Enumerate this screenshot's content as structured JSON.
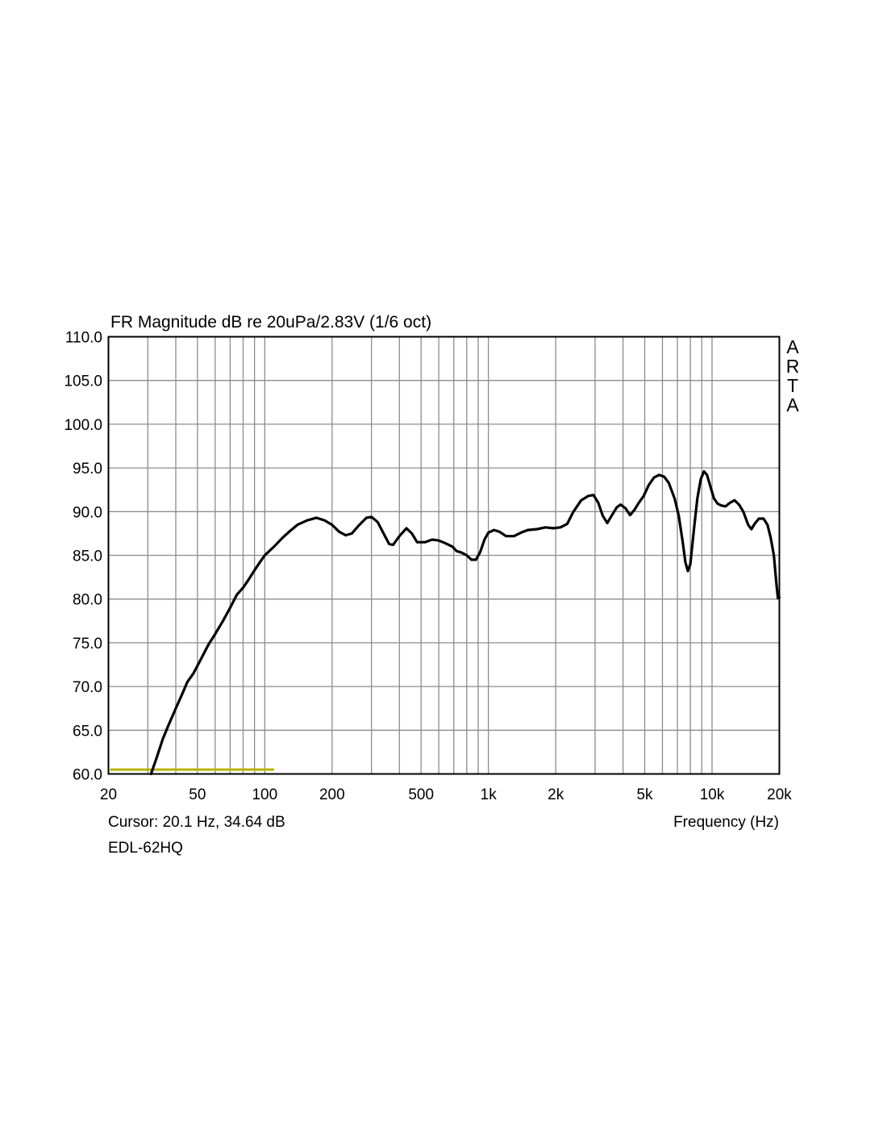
{
  "chart_data": {
    "type": "line",
    "title": "FR Magnitude dB re 20uPa/2.83V (1/6 oct)",
    "xlabel": "Frequency (Hz)",
    "ylabel": "",
    "xscale": "log",
    "xlim": [
      20,
      20000
    ],
    "ylim": [
      60,
      110
    ],
    "grid": true,
    "yticks": [
      "110.0",
      "105.0",
      "100.0",
      "95.0",
      "90.0",
      "85.0",
      "80.0",
      "75.0",
      "70.0",
      "65.0",
      "60.0"
    ],
    "xticks": [
      {
        "value": 20,
        "label": "20"
      },
      {
        "value": 50,
        "label": "50"
      },
      {
        "value": 100,
        "label": "100"
      },
      {
        "value": 200,
        "label": "200"
      },
      {
        "value": 500,
        "label": "500"
      },
      {
        "value": 1000,
        "label": "1k"
      },
      {
        "value": 2000,
        "label": "2k"
      },
      {
        "value": 5000,
        "label": "5k"
      },
      {
        "value": 10000,
        "label": "10k"
      },
      {
        "value": 20000,
        "label": "20k"
      }
    ],
    "cursor_text": "Cursor: 20.1 Hz, 34.64 dB",
    "measurement_name": "EDL-62HQ",
    "watermark_letters": [
      "A",
      "R",
      "T",
      "A"
    ],
    "cursor_line": {
      "color": "#b8b400",
      "x_start": 20,
      "x_end": 110,
      "y": 60.5
    },
    "series": [
      {
        "color": "#000000",
        "points": [
          [
            31,
            60.0
          ],
          [
            33,
            62.0
          ],
          [
            35,
            64.0
          ],
          [
            37,
            65.5
          ],
          [
            40,
            67.5
          ],
          [
            43,
            69.3
          ],
          [
            45,
            70.5
          ],
          [
            48,
            71.5
          ],
          [
            52,
            73.2
          ],
          [
            56,
            74.8
          ],
          [
            60,
            76.0
          ],
          [
            65,
            77.5
          ],
          [
            70,
            79.0
          ],
          [
            75,
            80.5
          ],
          [
            80,
            81.3
          ],
          [
            85,
            82.3
          ],
          [
            90,
            83.3
          ],
          [
            95,
            84.2
          ],
          [
            100,
            85.0
          ],
          [
            110,
            86.0
          ],
          [
            120,
            87.0
          ],
          [
            130,
            87.8
          ],
          [
            140,
            88.5
          ],
          [
            155,
            89.0
          ],
          [
            170,
            89.3
          ],
          [
            185,
            89.0
          ],
          [
            200,
            88.5
          ],
          [
            215,
            87.7
          ],
          [
            230,
            87.3
          ],
          [
            245,
            87.5
          ],
          [
            265,
            88.5
          ],
          [
            285,
            89.3
          ],
          [
            300,
            89.4
          ],
          [
            320,
            88.8
          ],
          [
            340,
            87.5
          ],
          [
            360,
            86.3
          ],
          [
            375,
            86.2
          ],
          [
            400,
            87.2
          ],
          [
            430,
            88.1
          ],
          [
            455,
            87.5
          ],
          [
            480,
            86.5
          ],
          [
            520,
            86.5
          ],
          [
            560,
            86.8
          ],
          [
            600,
            86.7
          ],
          [
            640,
            86.4
          ],
          [
            690,
            86.0
          ],
          [
            720,
            85.5
          ],
          [
            760,
            85.3
          ],
          [
            800,
            85.0
          ],
          [
            840,
            84.5
          ],
          [
            880,
            84.5
          ],
          [
            920,
            85.4
          ],
          [
            960,
            86.8
          ],
          [
            1000,
            87.6
          ],
          [
            1060,
            87.9
          ],
          [
            1120,
            87.7
          ],
          [
            1200,
            87.2
          ],
          [
            1300,
            87.2
          ],
          [
            1400,
            87.6
          ],
          [
            1500,
            87.9
          ],
          [
            1650,
            88.0
          ],
          [
            1800,
            88.2
          ],
          [
            1950,
            88.1
          ],
          [
            2100,
            88.2
          ],
          [
            2250,
            88.6
          ],
          [
            2400,
            90.0
          ],
          [
            2600,
            91.3
          ],
          [
            2800,
            91.8
          ],
          [
            2950,
            91.9
          ],
          [
            3100,
            91.0
          ],
          [
            3250,
            89.5
          ],
          [
            3400,
            88.7
          ],
          [
            3550,
            89.5
          ],
          [
            3750,
            90.5
          ],
          [
            3900,
            90.8
          ],
          [
            4100,
            90.4
          ],
          [
            4300,
            89.6
          ],
          [
            4500,
            90.2
          ],
          [
            4700,
            91.0
          ],
          [
            4950,
            91.8
          ],
          [
            5200,
            93.0
          ],
          [
            5500,
            93.9
          ],
          [
            5800,
            94.2
          ],
          [
            6100,
            94.0
          ],
          [
            6400,
            93.3
          ],
          [
            6800,
            91.5
          ],
          [
            7100,
            89.5
          ],
          [
            7400,
            86.5
          ],
          [
            7600,
            84.2
          ],
          [
            7800,
            83.2
          ],
          [
            8000,
            84.0
          ],
          [
            8300,
            88.0
          ],
          [
            8600,
            91.5
          ],
          [
            8900,
            93.7
          ],
          [
            9200,
            94.6
          ],
          [
            9500,
            94.2
          ],
          [
            9800,
            93.0
          ],
          [
            10200,
            91.5
          ],
          [
            10600,
            90.9
          ],
          [
            11000,
            90.7
          ],
          [
            11500,
            90.6
          ],
          [
            12000,
            91.0
          ],
          [
            12600,
            91.3
          ],
          [
            13200,
            90.8
          ],
          [
            13800,
            90.0
          ],
          [
            14500,
            88.5
          ],
          [
            15000,
            88.0
          ],
          [
            15500,
            88.6
          ],
          [
            16200,
            89.2
          ],
          [
            17000,
            89.2
          ],
          [
            17700,
            88.5
          ],
          [
            18300,
            87.0
          ],
          [
            18900,
            85.0
          ],
          [
            19400,
            81.8
          ],
          [
            19700,
            80.1
          ],
          [
            20000,
            80.2
          ]
        ]
      }
    ]
  }
}
